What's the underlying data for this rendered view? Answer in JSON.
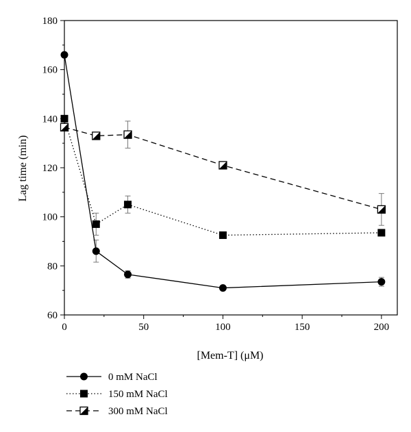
{
  "chart_data": {
    "type": "line",
    "xlabel": "[Mem-T] (μM)",
    "ylabel": "Lag time (min)",
    "xlim": [
      0,
      210
    ],
    "ylim": [
      60,
      180
    ],
    "x_ticks": [
      0,
      50,
      100,
      150,
      200
    ],
    "x_tick_labels": [
      "0",
      "50",
      "100",
      "150",
      "200"
    ],
    "y_ticks": [
      60,
      80,
      100,
      120,
      140,
      160,
      180
    ],
    "y_tick_labels": [
      "60",
      "80",
      "100",
      "120",
      "140",
      "160",
      "180"
    ],
    "grid": false,
    "legend_position": "bottom-left, below plot",
    "series": [
      {
        "name": "0 mM NaCl",
        "line_style": "solid",
        "marker": "circle",
        "x": [
          0,
          20,
          40,
          100,
          200
        ],
        "y": [
          166,
          86,
          76.5,
          71,
          73.5
        ],
        "error": [
          0,
          4.5,
          1.5,
          0,
          1.8
        ]
      },
      {
        "name": "150 mM NaCl",
        "line_style": "dotted",
        "marker": "square",
        "x": [
          0,
          20,
          40,
          100,
          200
        ],
        "y": [
          140,
          97,
          105,
          92.5,
          93.5
        ],
        "error": [
          0,
          4.5,
          3.5,
          0,
          0
        ]
      },
      {
        "name": "300 mM NaCl",
        "line_style": "dashed",
        "marker": "half-filled-square",
        "x": [
          0,
          20,
          40,
          100,
          200
        ],
        "y": [
          136.5,
          133,
          133.5,
          121,
          103
        ],
        "error": [
          0,
          0,
          5.5,
          0,
          6.5
        ]
      }
    ]
  }
}
